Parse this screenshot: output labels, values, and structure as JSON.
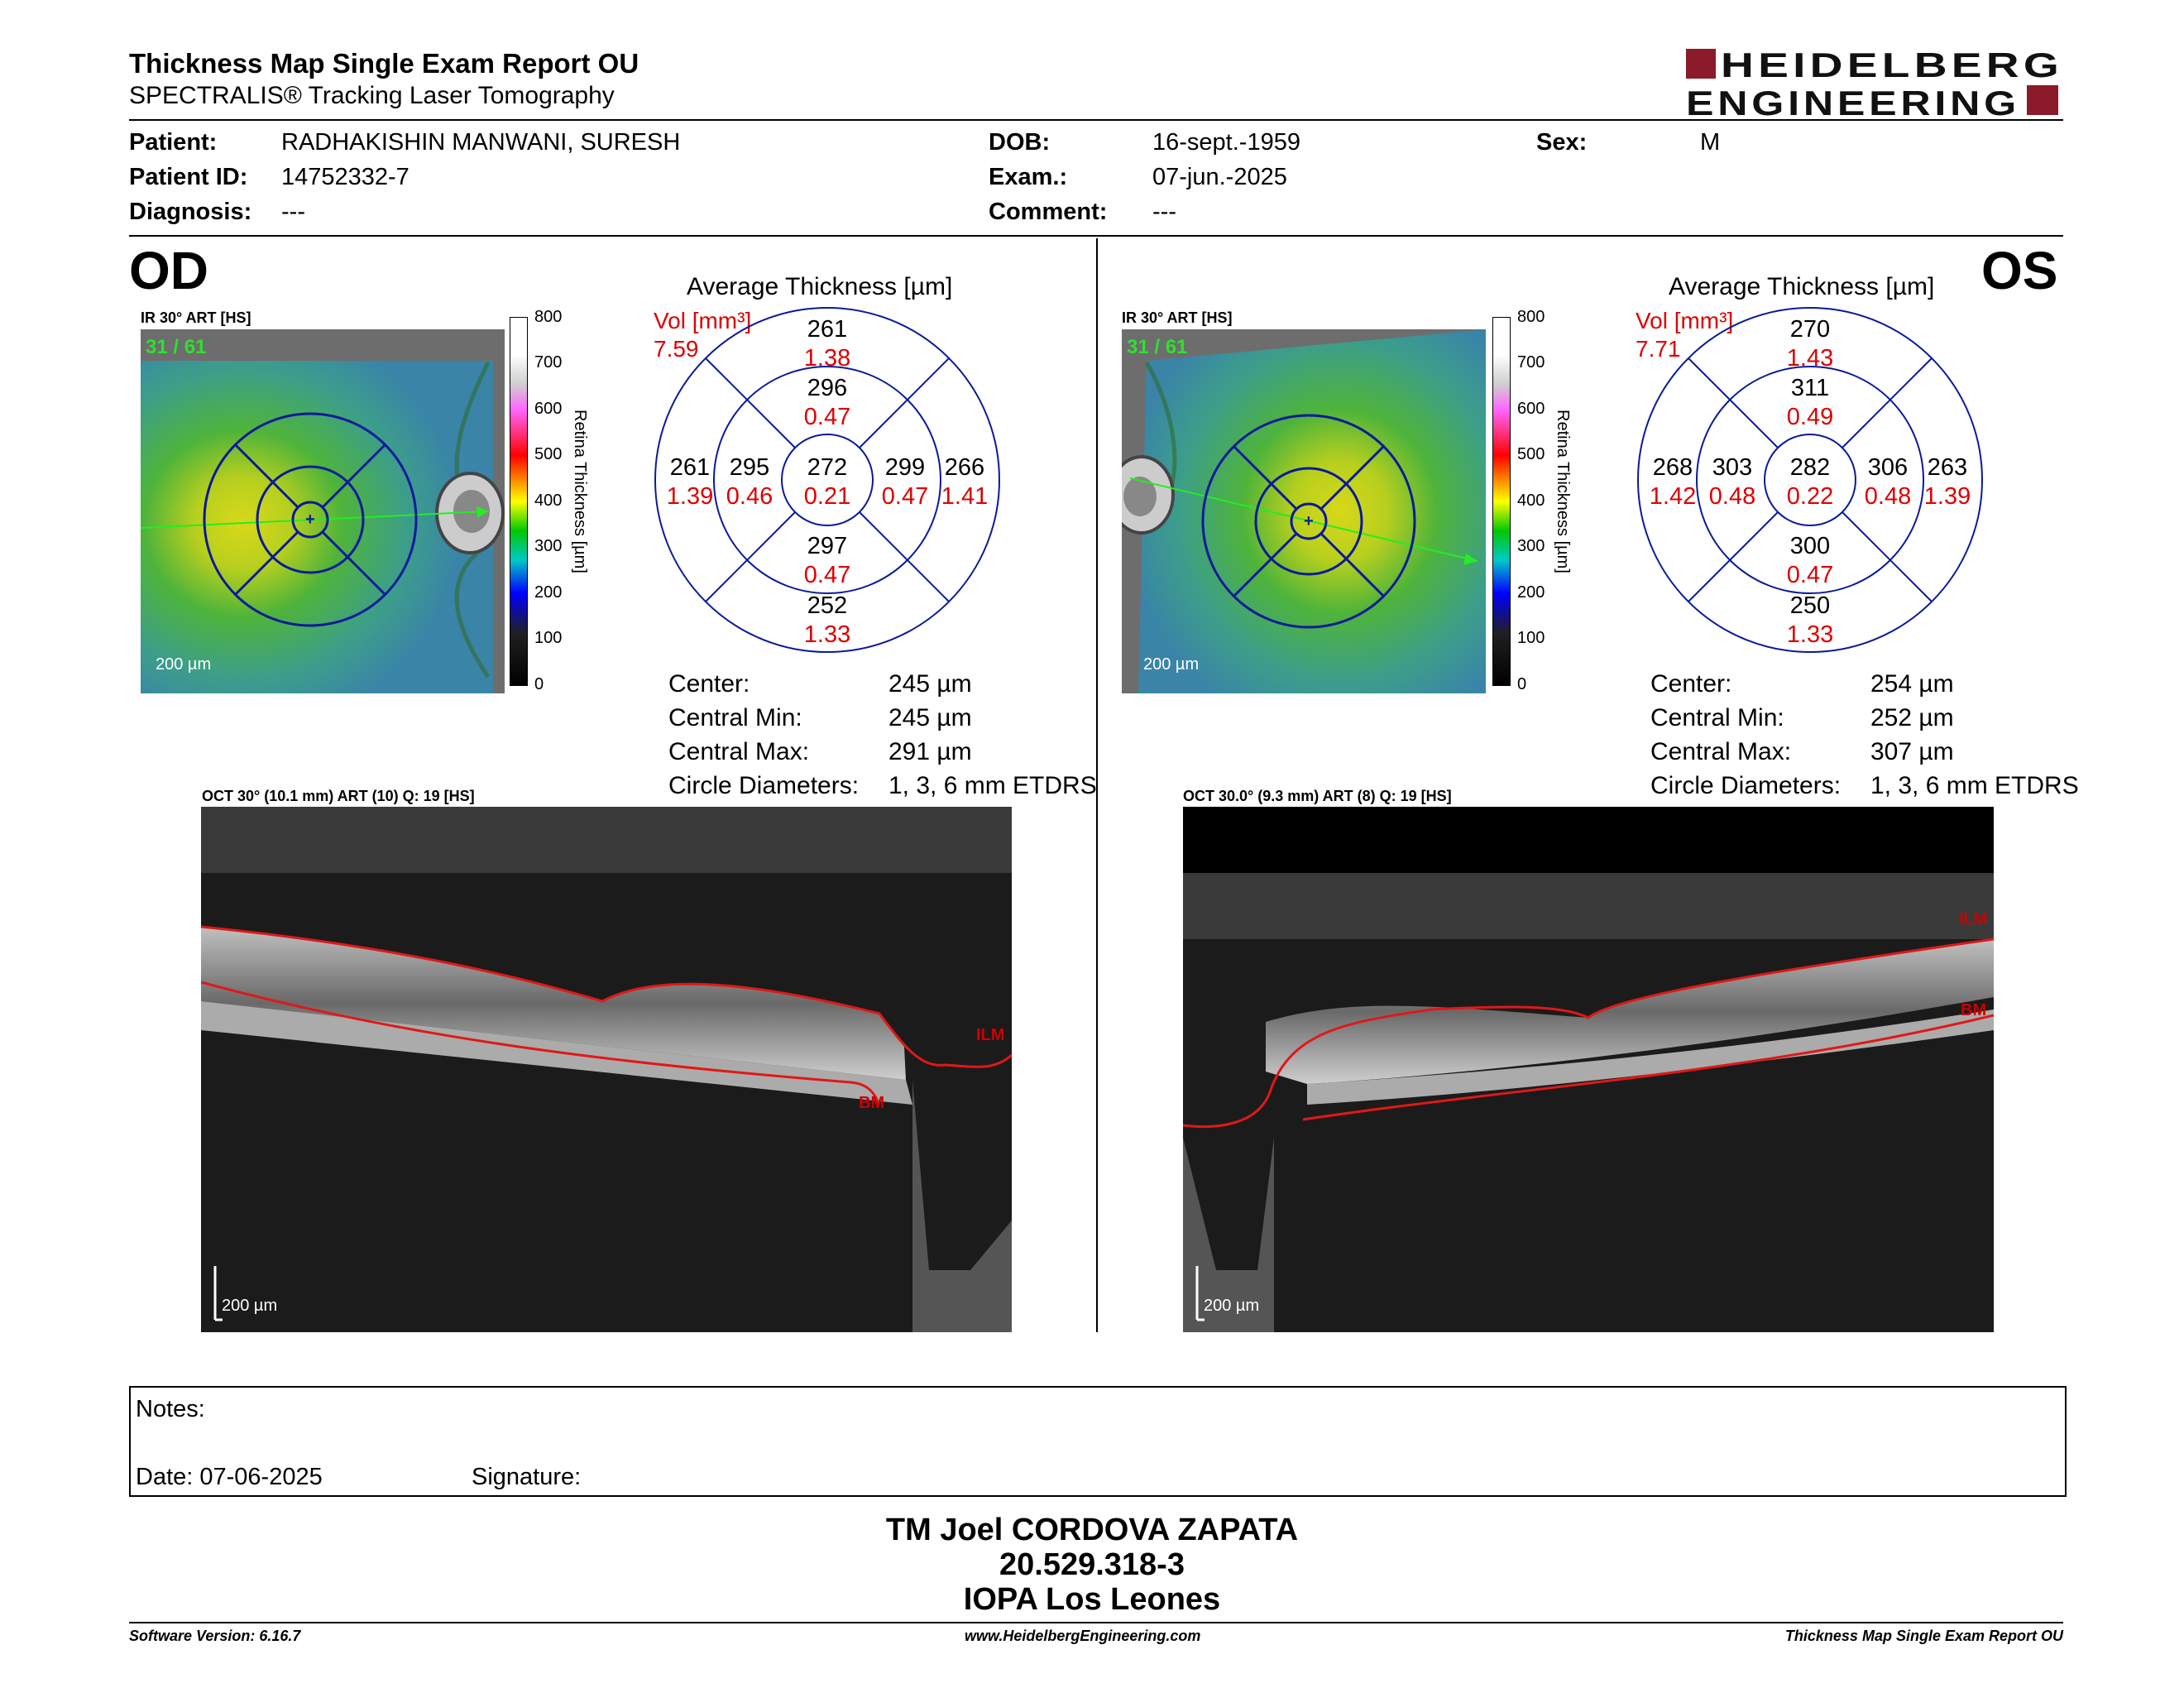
{
  "report": {
    "title": "Thickness Map Single Exam Report OU",
    "subtitle": "SPECTRALIS® Tracking Laser Tomography",
    "logo_line1": "HEIDELBERG",
    "logo_line2": "ENGINEERING"
  },
  "patient": {
    "patient_label": "Patient:",
    "patient_value": "RADHAKISHIN MANWANI, SURESH",
    "id_label": "Patient ID:",
    "id_value": "14752332-7",
    "diag_label": "Diagnosis:",
    "diag_value": "---",
    "dob_label": "DOB:",
    "dob_value": "16-sept.-1959",
    "exam_label": "Exam.:",
    "exam_value": "07-jun.-2025",
    "comment_label": "Comment:",
    "comment_value": "---",
    "sex_label": "Sex:",
    "sex_value": "M"
  },
  "od": {
    "eye": "OD",
    "ir_header": "IR 30° ART [HS]",
    "scan_index": "31 / 61",
    "scale_bar": "200 µm",
    "avg_title": "Average Thickness [µm]",
    "vol_label": "Vol [mm³]",
    "vol_value": "7.59",
    "grid": {
      "center_t": "272",
      "center_v": "0.21",
      "inner_sup_t": "296",
      "inner_sup_v": "0.47",
      "inner_inf_t": "297",
      "inner_inf_v": "0.47",
      "inner_left_t": "295",
      "inner_left_v": "0.46",
      "inner_right_t": "299",
      "inner_right_v": "0.47",
      "outer_sup_t": "261",
      "outer_sup_v": "1.38",
      "outer_inf_t": "252",
      "outer_inf_v": "1.33",
      "outer_left_t": "261",
      "outer_left_v": "1.39",
      "outer_right_t": "266",
      "outer_right_v": "1.41"
    },
    "stats": {
      "center_k": "Center:",
      "center_v": "245 µm",
      "min_k": "Central Min:",
      "min_v": "245 µm",
      "max_k": "Central Max:",
      "max_v": "291 µm",
      "circ_k": "Circle Diameters:",
      "circ_v": "1, 3, 6 mm ETDRS"
    },
    "oct_header": "OCT 30° (10.1 mm) ART (10) Q: 19 [HS]",
    "oct_scale": "200 µm",
    "ilm": "ILM",
    "bm": "BM"
  },
  "os": {
    "eye": "OS",
    "ir_header": "IR 30° ART [HS]",
    "scan_index": "31 / 61",
    "scale_bar": "200 µm",
    "avg_title": "Average Thickness [µm]",
    "vol_label": "Vol [mm³]",
    "vol_value": "7.71",
    "grid": {
      "center_t": "282",
      "center_v": "0.22",
      "inner_sup_t": "311",
      "inner_sup_v": "0.49",
      "inner_inf_t": "300",
      "inner_inf_v": "0.47",
      "inner_left_t": "303",
      "inner_left_v": "0.48",
      "inner_right_t": "306",
      "inner_right_v": "0.48",
      "outer_sup_t": "270",
      "outer_sup_v": "1.43",
      "outer_inf_t": "250",
      "outer_inf_v": "1.33",
      "outer_left_t": "268",
      "outer_left_v": "1.42",
      "outer_right_t": "263",
      "outer_right_v": "1.39"
    },
    "stats": {
      "center_k": "Center:",
      "center_v": "254 µm",
      "min_k": "Central Min:",
      "min_v": "252 µm",
      "max_k": "Central Max:",
      "max_v": "307 µm",
      "circ_k": "Circle Diameters:",
      "circ_v": "1, 3, 6 mm ETDRS"
    },
    "oct_header": "OCT 30.0° (9.3 mm) ART (8) Q: 19 [HS]",
    "oct_scale": "200 µm",
    "ilm": "ILM",
    "bm": "BM"
  },
  "colorbar": {
    "axis_label": "Retina  Thickness [µm]",
    "ticks": [
      "800",
      "700",
      "600",
      "500",
      "400",
      "300",
      "200",
      "100",
      "0"
    ]
  },
  "notes": {
    "notes_label": "Notes:",
    "date_label": "Date: 07-06-2025",
    "signature_label": "Signature:"
  },
  "signature_block": {
    "line1": "TM Joel CORDOVA ZAPATA",
    "line2": "20.529.318-3",
    "line3": "IOPA Los Leones"
  },
  "footer": {
    "software": "Software Version: 6.16.7",
    "website": "www.HeidelbergEngineering.com",
    "report_name": "Thickness Map Single Exam Report OU"
  }
}
